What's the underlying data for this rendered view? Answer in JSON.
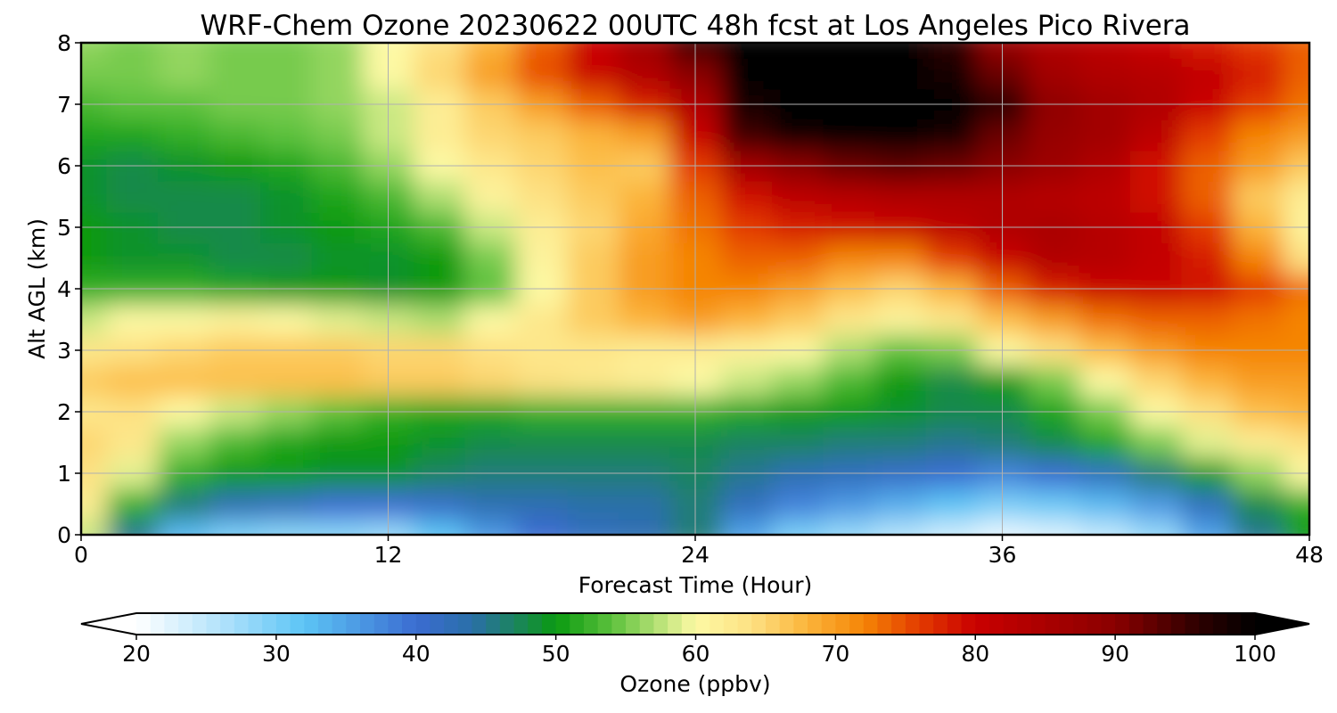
{
  "chart_data": {
    "type": "heatmap",
    "title": "WRF-Chem Ozone  20230622 00UTC 48h fcst at Los Angeles Pico Rivera",
    "xlabel": "Forecast Time (Hour)",
    "ylabel": "Alt AGL (km)",
    "xlim": [
      0,
      48
    ],
    "ylim": [
      0,
      8
    ],
    "xticks": [
      0,
      12,
      24,
      36,
      48
    ],
    "yticks": [
      0,
      1,
      2,
      3,
      4,
      5,
      6,
      7,
      8
    ],
    "grid": true,
    "x": [
      0,
      2,
      4,
      6,
      8,
      10,
      12,
      14,
      16,
      18,
      20,
      22,
      24,
      26,
      28,
      30,
      32,
      34,
      36,
      38,
      40,
      42,
      44,
      46,
      48
    ],
    "y": [
      0,
      0.5,
      1,
      1.5,
      2,
      2.5,
      3,
      3.5,
      4,
      4.5,
      5,
      5.5,
      6,
      6.5,
      7,
      7.5,
      8
    ],
    "z": [
      [
        58,
        45,
        33,
        30,
        29,
        29,
        28,
        32,
        36,
        40,
        42,
        43,
        46,
        35,
        30,
        28,
        26,
        24,
        22,
        23,
        25,
        28,
        35,
        45,
        50
      ],
      [
        62,
        52,
        46,
        43,
        42,
        40,
        40,
        41,
        43,
        43,
        44,
        44,
        46,
        42,
        38,
        36,
        34,
        32,
        30,
        31,
        33,
        36,
        42,
        48,
        52
      ],
      [
        64,
        59,
        52,
        50,
        50,
        49,
        49,
        47,
        46,
        46,
        46,
        46,
        47,
        45,
        43,
        42,
        41,
        40,
        38,
        40,
        42,
        46,
        50,
        56,
        60
      ],
      [
        65,
        63,
        56,
        53,
        51,
        50,
        50,
        49,
        48,
        48,
        48,
        48,
        48,
        47,
        47,
        46,
        46,
        45,
        46,
        48,
        51,
        55,
        59,
        62,
        64
      ],
      [
        63,
        64,
        60,
        58,
        56,
        54,
        52,
        51,
        51,
        52,
        52,
        52,
        52,
        51,
        50,
        50,
        49,
        48,
        48,
        51,
        55,
        60,
        64,
        67,
        68
      ],
      [
        66,
        67,
        67,
        67,
        67,
        67,
        66,
        66,
        65,
        64,
        63,
        62,
        60,
        58,
        56,
        53,
        50,
        48,
        50,
        55,
        60,
        65,
        68,
        70,
        70
      ],
      [
        63,
        64,
        65,
        66,
        66,
        66,
        65,
        65,
        64,
        63,
        63,
        62,
        62,
        61,
        60,
        57,
        54,
        55,
        60,
        64,
        67,
        70,
        72,
        72,
        72
      ],
      [
        58,
        60,
        60,
        61,
        60,
        59,
        58,
        57,
        60,
        63,
        66,
        68,
        70,
        68,
        66,
        63,
        61,
        63,
        67,
        70,
        73,
        74,
        74,
        73,
        72
      ],
      [
        52,
        52,
        52,
        51,
        50,
        50,
        49,
        50,
        54,
        60,
        66,
        70,
        72,
        72,
        70,
        67,
        65,
        68,
        74,
        78,
        80,
        80,
        79,
        76,
        73
      ],
      [
        50,
        49,
        49,
        48,
        48,
        49,
        49,
        50,
        55,
        61,
        66,
        70,
        72,
        74,
        74,
        72,
        72,
        76,
        80,
        84,
        83,
        81,
        78,
        72,
        64
      ],
      [
        50,
        49,
        48,
        48,
        49,
        50,
        51,
        53,
        58,
        62,
        65,
        69,
        73,
        76,
        78,
        79,
        80,
        82,
        84,
        85,
        83,
        81,
        76,
        68,
        61
      ],
      [
        49,
        48,
        48,
        48,
        49,
        51,
        53,
        57,
        61,
        64,
        66,
        68,
        74,
        79,
        82,
        83,
        84,
        84,
        84,
        83,
        82,
        79,
        74,
        66,
        62
      ],
      [
        49,
        48,
        49,
        50,
        51,
        53,
        56,
        60,
        63,
        65,
        67,
        66,
        76,
        86,
        90,
        92,
        93,
        92,
        90,
        87,
        84,
        79,
        74,
        70,
        66
      ],
      [
        51,
        51,
        52,
        53,
        54,
        55,
        58,
        62,
        65,
        66,
        68,
        70,
        80,
        95,
        99,
        100,
        100,
        98,
        92,
        88,
        86,
        82,
        76,
        72,
        70
      ],
      [
        53,
        54,
        54,
        55,
        55,
        56,
        58,
        62,
        66,
        70,
        74,
        78,
        84,
        98,
        100,
        100,
        100,
        100,
        96,
        89,
        86,
        84,
        80,
        76,
        73
      ],
      [
        55,
        55,
        56,
        55,
        55,
        56,
        60,
        65,
        70,
        75,
        80,
        84,
        90,
        100,
        100,
        100,
        100,
        98,
        92,
        86,
        84,
        83,
        81,
        78,
        74
      ],
      [
        56,
        55,
        56,
        55,
        55,
        56,
        60,
        64,
        68,
        74,
        80,
        86,
        95,
        100,
        100,
        100,
        100,
        96,
        88,
        84,
        82,
        80,
        78,
        76,
        74
      ]
    ],
    "colorbar": {
      "label": "Ozone  (ppbv)",
      "min": 20,
      "max": 100,
      "ticks": [
        20,
        30,
        40,
        50,
        60,
        70,
        80,
        90,
        100
      ],
      "extend": "both",
      "stops": [
        [
          20,
          "#ffffff"
        ],
        [
          26,
          "#b3e3fb"
        ],
        [
          32,
          "#5cc4f5"
        ],
        [
          40,
          "#3b6cd1"
        ],
        [
          44,
          "#2a6fa8"
        ],
        [
          48,
          "#178a48"
        ],
        [
          50,
          "#0a9a10"
        ],
        [
          54,
          "#5cc13c"
        ],
        [
          58,
          "#c9e882"
        ],
        [
          60,
          "#fdf9a4"
        ],
        [
          64,
          "#fde183"
        ],
        [
          68,
          "#fbb43a"
        ],
        [
          72,
          "#f58506"
        ],
        [
          76,
          "#e33b00"
        ],
        [
          80,
          "#c90000"
        ],
        [
          90,
          "#8a0000"
        ],
        [
          96,
          "#2c0000"
        ],
        [
          100,
          "#000000"
        ]
      ]
    }
  }
}
